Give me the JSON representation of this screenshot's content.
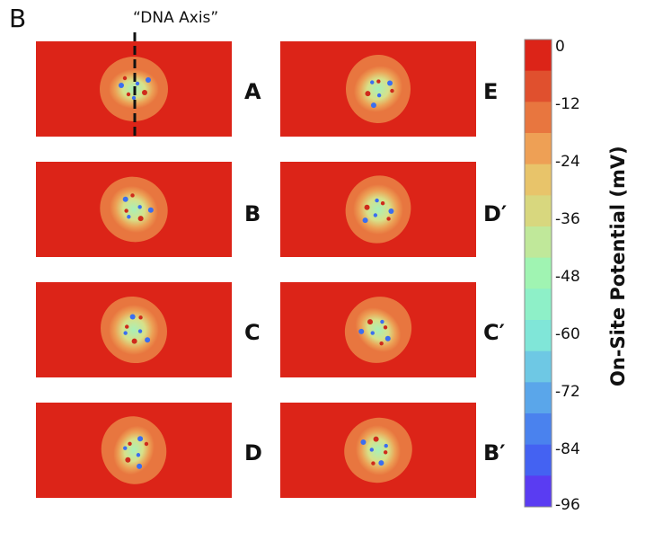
{
  "figure": {
    "panel_label": "B",
    "dna_axis_label": "“DNA Axis”",
    "left_labels": [
      "A",
      "B",
      "C",
      "D"
    ],
    "right_labels": [
      "E",
      "D′",
      "C′",
      "B′"
    ]
  },
  "colorbar": {
    "title": "On-Site Potential (mV)",
    "ticks": [
      "0",
      "-12",
      "-24",
      "-36",
      "-48",
      "-60",
      "-72",
      "-84",
      "-96"
    ],
    "colors": [
      "#dc2418",
      "#e0502e",
      "#e8763f",
      "#eea055",
      "#e8c46a",
      "#d8d77e",
      "#c0e89a",
      "#a0f4b2",
      "#8ef0c8",
      "#80e6d8",
      "#6ec8e4",
      "#5aa6ea",
      "#4a82ee",
      "#4462f2",
      "#5a3cf2"
    ]
  }
}
